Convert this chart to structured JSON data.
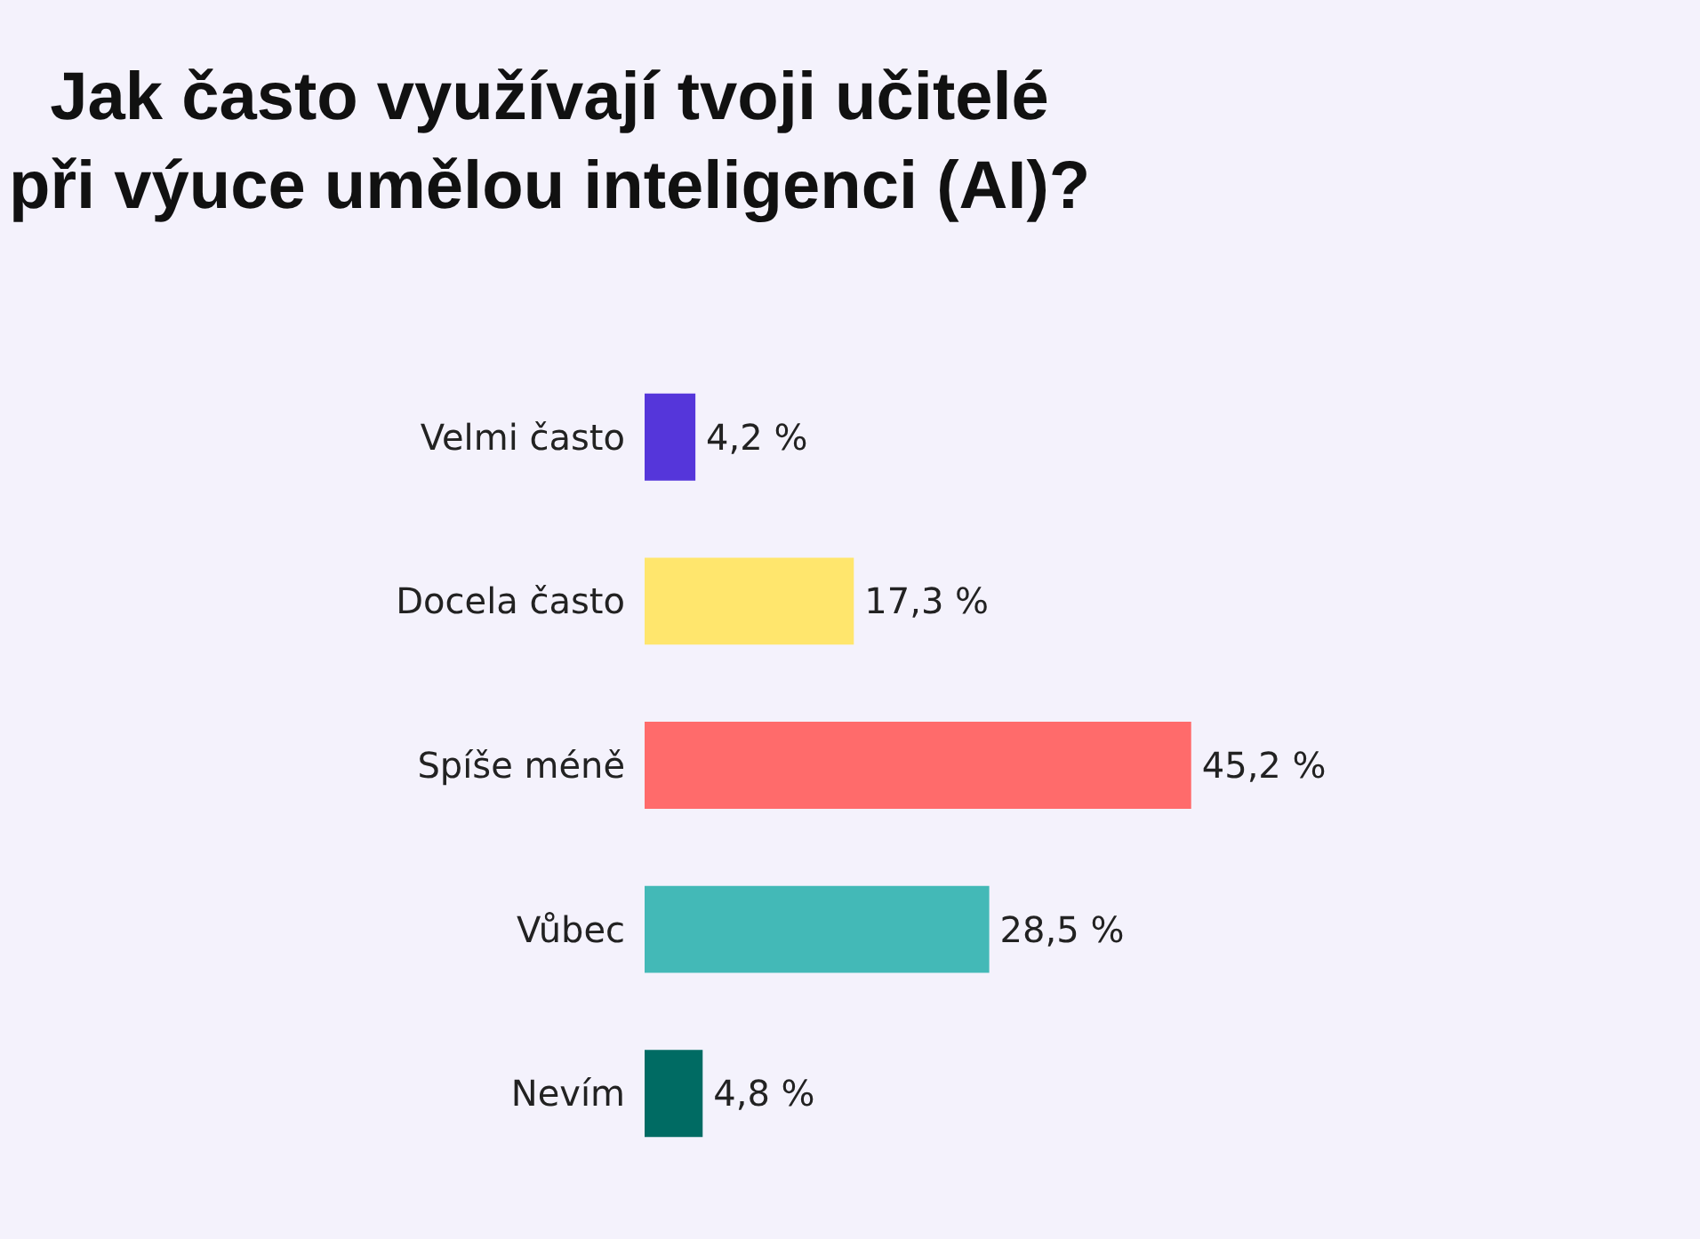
{
  "chart_data": {
    "type": "bar",
    "orientation": "horizontal",
    "title": "Jak často využívají tvoji učitelé\npři výuce umělou inteligenci (AI)?",
    "categories": [
      "Velmi často",
      "Docela často",
      "Spíše méně",
      "Vůbec",
      "Nevím"
    ],
    "values": [
      4.2,
      17.3,
      45.2,
      28.5,
      4.8
    ],
    "colors": [
      "#5536da",
      "#ffe66d",
      "#ff6b6b",
      "#43b9b7",
      "#006b63"
    ],
    "value_labels": [
      "4,2 %",
      "17,3 %",
      "45,2 %",
      "28,5 %",
      "4,8 %"
    ],
    "grid": false
  }
}
